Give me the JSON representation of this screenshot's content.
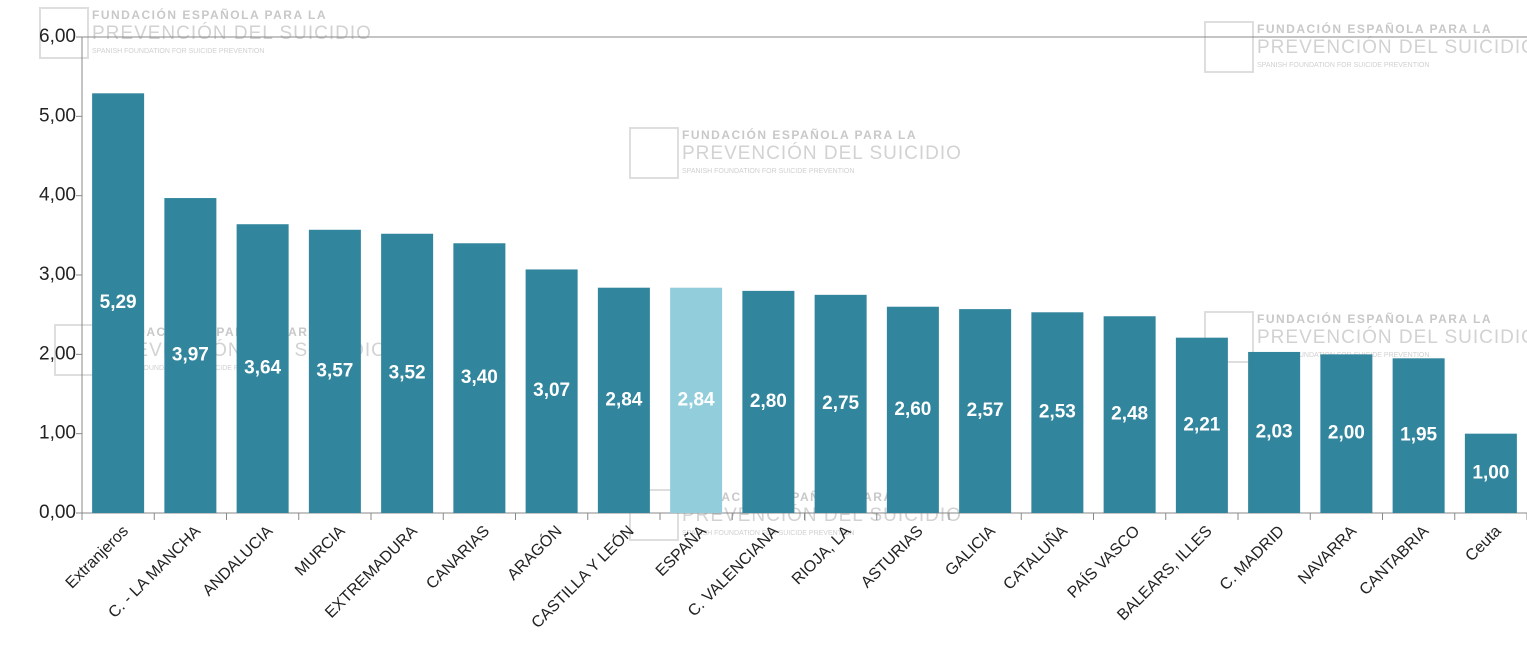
{
  "chart_data": {
    "type": "bar",
    "watermark": [
      "FUNDACIÓN ESPAÑOLA PARA LA",
      "PREVENCIÓN DEL SUICIDIO",
      "SPANISH FOUNDATION FOR SUICIDE PREVENTION"
    ],
    "categories": [
      "Extranjeros",
      "C. - LA MANCHA",
      "ANDALUCIA",
      "MURCIA",
      "EXTREMADURA",
      "CANARIAS",
      "ARAGÓN",
      "CASTILLA Y LEÓN",
      "ESPAÑA",
      "C. VALENCIANA",
      "RIOJA, LA",
      "ASTURIAS",
      "GALICIA",
      "CATALUÑA",
      "PAÍS VASCO",
      "BALEARS, ILLES",
      "C. MADRID",
      "NAVARRA",
      "CANTABRIA",
      "Ceuta"
    ],
    "values": [
      5.29,
      3.97,
      3.64,
      3.57,
      3.52,
      3.4,
      3.07,
      2.84,
      2.84,
      2.8,
      2.75,
      2.6,
      2.57,
      2.53,
      2.48,
      2.21,
      2.03,
      2.0,
      1.95,
      1.0
    ],
    "value_labels": [
      "5,29",
      "3,97",
      "3,64",
      "3,57",
      "3,52",
      "3,40",
      "3,07",
      "2,84",
      "2,84",
      "2,80",
      "2,75",
      "2,60",
      "2,57",
      "2,53",
      "2,48",
      "2,21",
      "2,03",
      "2,00",
      "1,95",
      "1,00"
    ],
    "colors": [
      "#31859c",
      "#31859c",
      "#31859c",
      "#31859c",
      "#31859c",
      "#31859c",
      "#31859c",
      "#31859c",
      "#92cddc",
      "#31859c",
      "#31859c",
      "#31859c",
      "#31859c",
      "#31859c",
      "#31859c",
      "#31859c",
      "#31859c",
      "#31859c",
      "#31859c",
      "#31859c"
    ],
    "ylim": [
      0,
      6
    ],
    "yticks": [
      {
        "value": 0,
        "label": "0,00"
      },
      {
        "value": 1,
        "label": "1,00"
      },
      {
        "value": 2,
        "label": "2,00"
      },
      {
        "value": 3,
        "label": "3,00"
      },
      {
        "value": 4,
        "label": "4,00"
      },
      {
        "value": 5,
        "label": "5,00"
      },
      {
        "value": 6,
        "label": "6,00"
      }
    ]
  }
}
